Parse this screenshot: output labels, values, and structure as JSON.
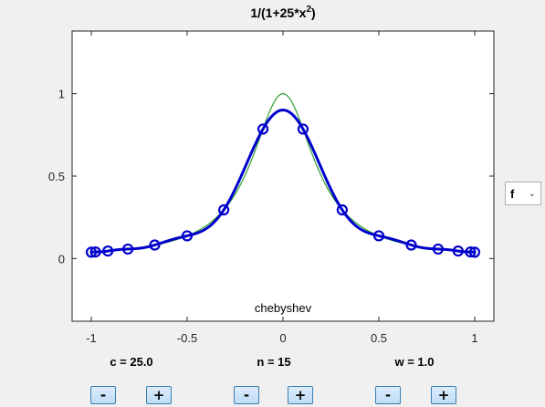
{
  "chart_data": {
    "type": "line",
    "title_base": "1/(1+25*x",
    "title_sup": "2",
    "title_close": ")",
    "annotation": "chebyshev",
    "xlim": [
      -1.1,
      1.1
    ],
    "ylim": [
      -0.38,
      1.38
    ],
    "xticks": [
      -1,
      -0.5,
      0,
      0.5,
      1
    ],
    "xtick_labels": [
      "-1",
      "-0.5",
      "0",
      "0.5",
      "1"
    ],
    "yticks": [
      0,
      0.5,
      1
    ],
    "ytick_labels": [
      "0",
      "0.5",
      "1"
    ],
    "series": [
      {
        "function": "1/(1+25*x^2)",
        "color": "#2ca02c",
        "style": "thin-line"
      },
      {
        "interpolant": "chebyshev n=15",
        "color": "#0000cc",
        "style": "thick-line"
      }
    ],
    "interpolation_points": {
      "x": [
        -1.0,
        -0.9781,
        -0.9135,
        -0.809,
        -0.6691,
        -0.5,
        -0.309,
        -0.1045,
        0.1045,
        0.309,
        0.5,
        0.6691,
        0.809,
        0.9135,
        0.9781,
        1.0
      ],
      "y": [
        0.0385,
        0.0401,
        0.0457,
        0.0576,
        0.082,
        0.1379,
        0.2952,
        0.7855,
        0.7855,
        0.2952,
        0.1379,
        0.082,
        0.0576,
        0.0457,
        0.0401,
        0.0385
      ]
    }
  },
  "controls": {
    "c": {
      "label": "c = 25.0",
      "minus": "-",
      "plus": "+"
    },
    "n": {
      "label": "n = 15",
      "minus": "-",
      "plus": "+"
    },
    "w": {
      "label": "w = 1.0",
      "minus": "-",
      "plus": "+"
    }
  },
  "function_select": {
    "value": "f",
    "chevron": "chevron-down-icon"
  },
  "colors": {
    "background": "#f0f0f0",
    "axes": "#ffffff",
    "interpolant": "#0000cc",
    "function": "#2ca02c"
  }
}
